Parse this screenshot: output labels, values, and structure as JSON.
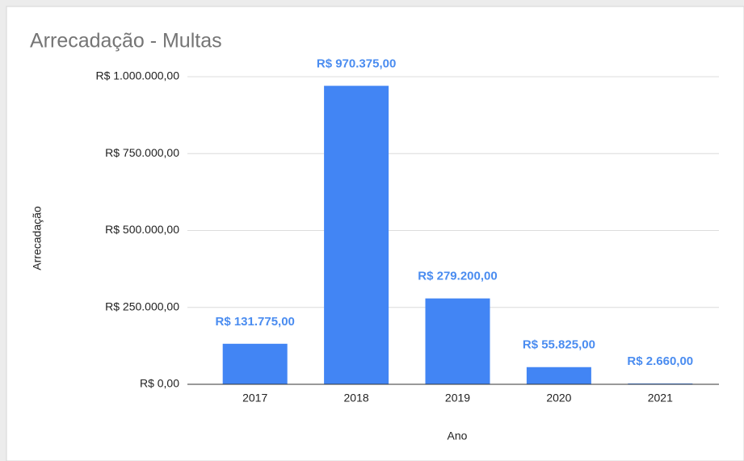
{
  "chart_data": {
    "type": "bar",
    "title": "Arrecadação - Multas",
    "x_label": "Ano",
    "y_label": "Arrecadação",
    "categories": [
      "2017",
      "2018",
      "2019",
      "2020",
      "2021"
    ],
    "values": [
      131775,
      970375,
      279200,
      55825,
      2660
    ],
    "value_labels": [
      "R$ 131.775,00",
      "R$ 970.375,00",
      "R$ 279.200,00",
      "R$ 55.825,00",
      "R$ 2.660,00"
    ],
    "color": "#4285f4",
    "ylim": [
      0,
      1000000
    ],
    "yticks": [
      {
        "value": 0,
        "label": "R$ 0,00"
      },
      {
        "value": 250000,
        "label": "R$ 250.000,00"
      },
      {
        "value": 500000,
        "label": "R$ 500.000,00"
      },
      {
        "value": 750000,
        "label": "R$ 750.000,00"
      },
      {
        "value": 1000000,
        "label": "R$ 1.000.000,00"
      }
    ],
    "grid": true
  }
}
